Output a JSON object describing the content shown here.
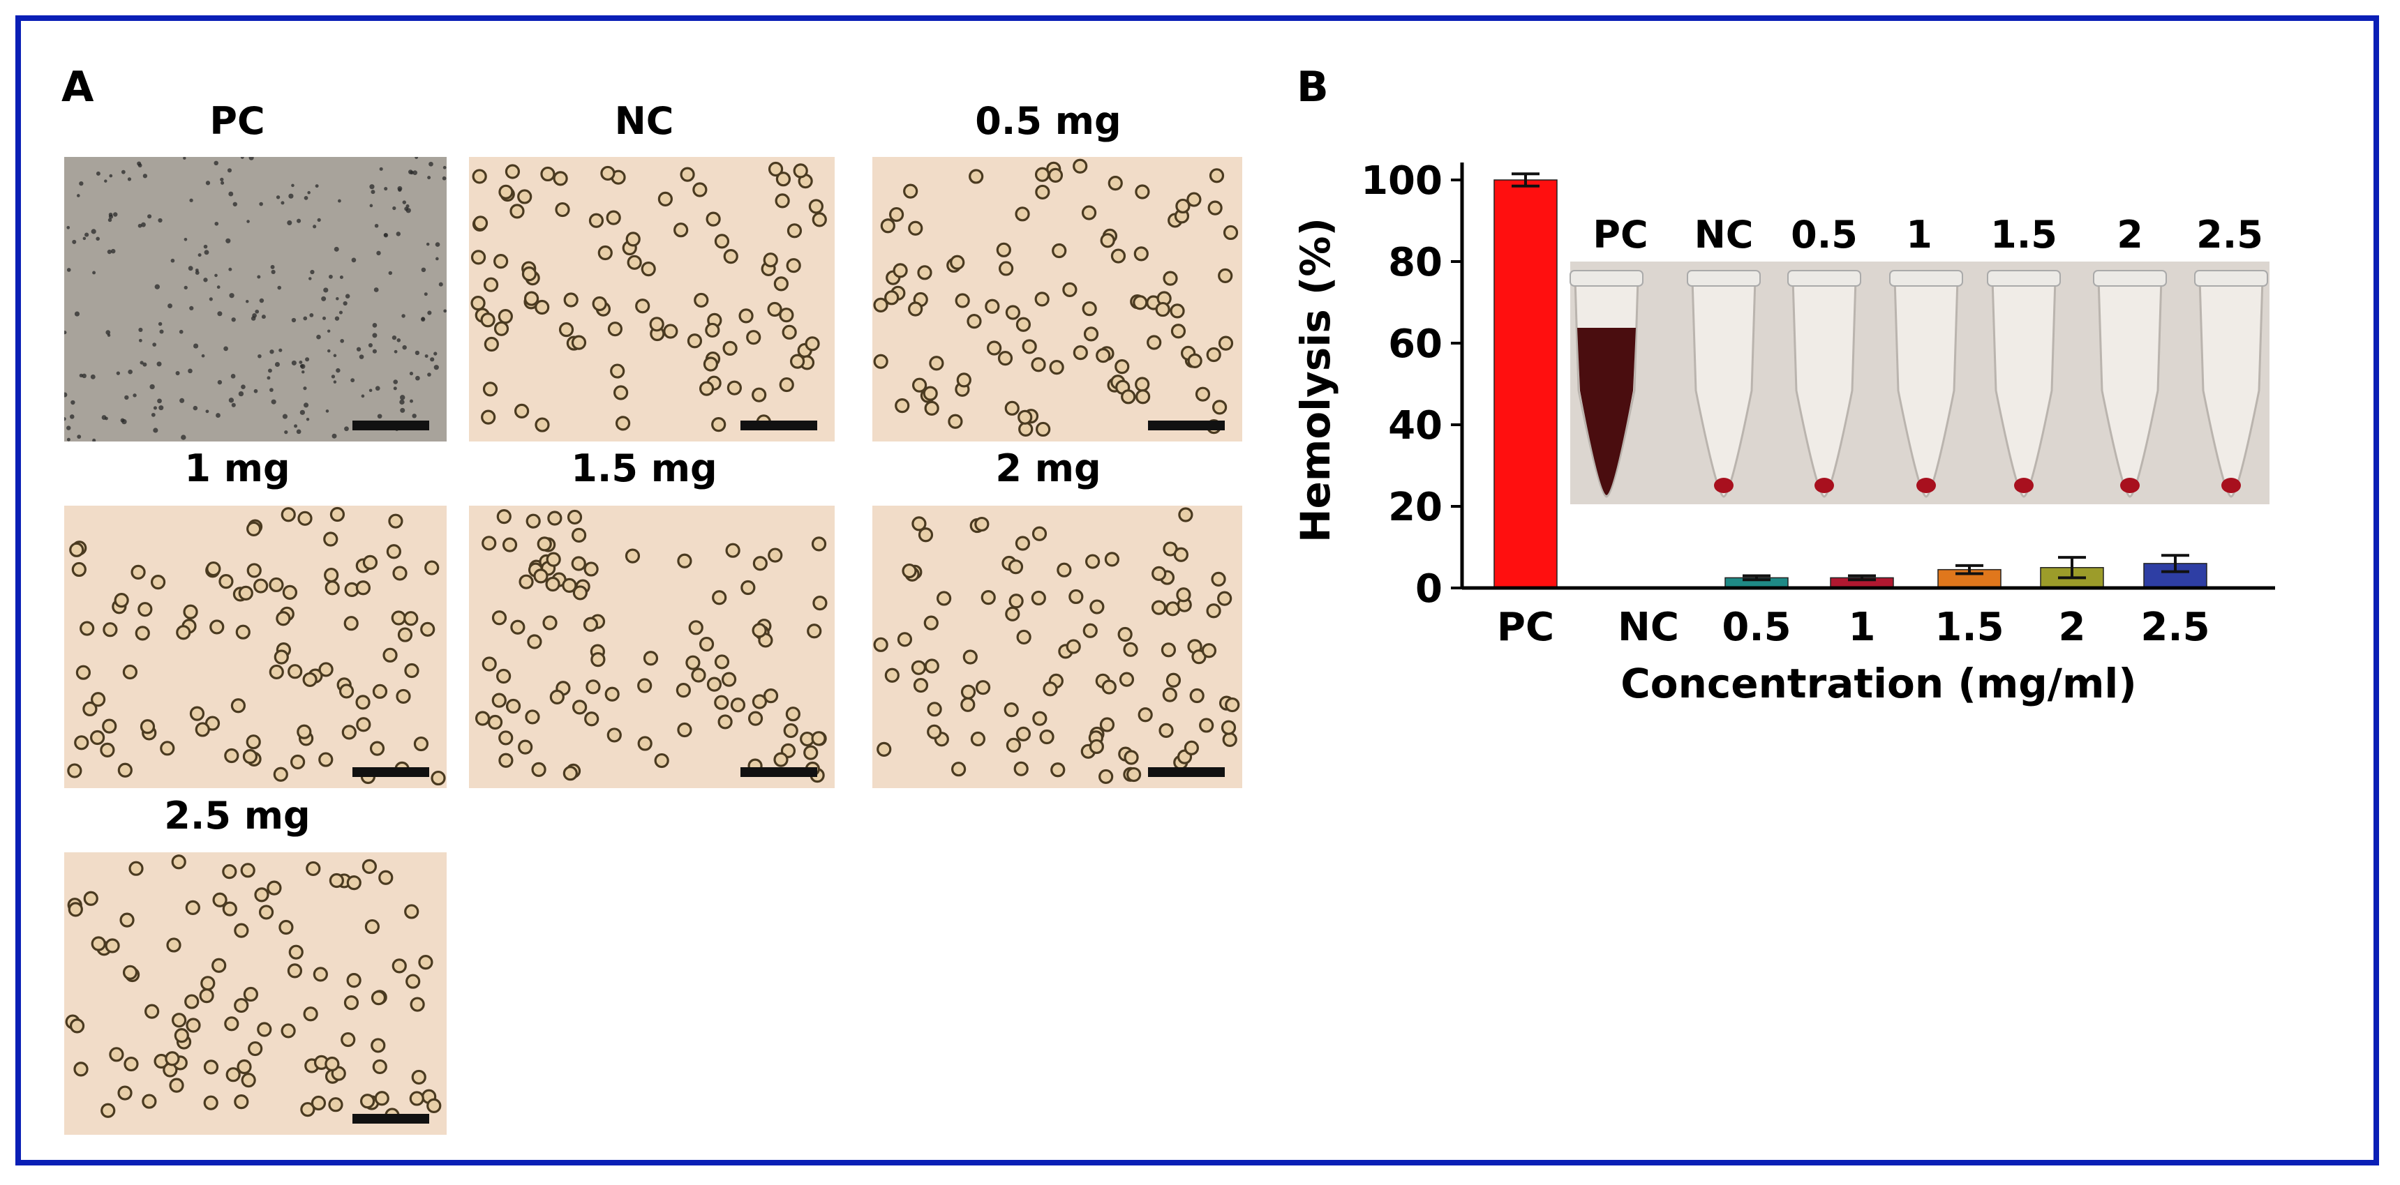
{
  "panel_a": {
    "letter": "A",
    "images": [
      {
        "label": "PC",
        "kind": "lysed"
      },
      {
        "label": "NC",
        "kind": "intact"
      },
      {
        "label": "0.5 mg",
        "kind": "intact"
      },
      {
        "label": "1 mg",
        "kind": "intact"
      },
      {
        "label": "1.5 mg",
        "kind": "intact"
      },
      {
        "label": "2 mg",
        "kind": "intact"
      },
      {
        "label": "2.5 mg",
        "kind": "intact"
      }
    ]
  },
  "panel_b": {
    "letter": "B",
    "tube_labels": [
      "PC",
      "NC",
      "0.5",
      "1",
      "1.5",
      "2",
      "2.5"
    ]
  },
  "colors": {
    "frame": "#0a1fb6",
    "pc_bar": "#ff0f0f",
    "micro_pink": "#f1dcc8",
    "micro_gray": "#a8a39b"
  },
  "chart_data": {
    "type": "bar",
    "xlabel": "Concentration (mg/ml)",
    "ylabel": "Hemolysis (%)",
    "ylim": [
      0,
      100
    ],
    "yticks": [
      "0",
      "20",
      "40",
      "60",
      "80",
      "100"
    ],
    "categories": [
      "PC",
      "NC",
      "0.5",
      "1",
      "1.5",
      "2",
      "2.5"
    ],
    "values": [
      100,
      0,
      2.5,
      2.5,
      4.5,
      5,
      6
    ],
    "errors": [
      1.5,
      0,
      0.5,
      0.5,
      1,
      2.5,
      2
    ],
    "bar_colors": [
      "#ff0f0f",
      "#ffffff",
      "#1f8a86",
      "#b01830",
      "#e0771c",
      "#9c9c2a",
      "#2e3ea4"
    ]
  }
}
